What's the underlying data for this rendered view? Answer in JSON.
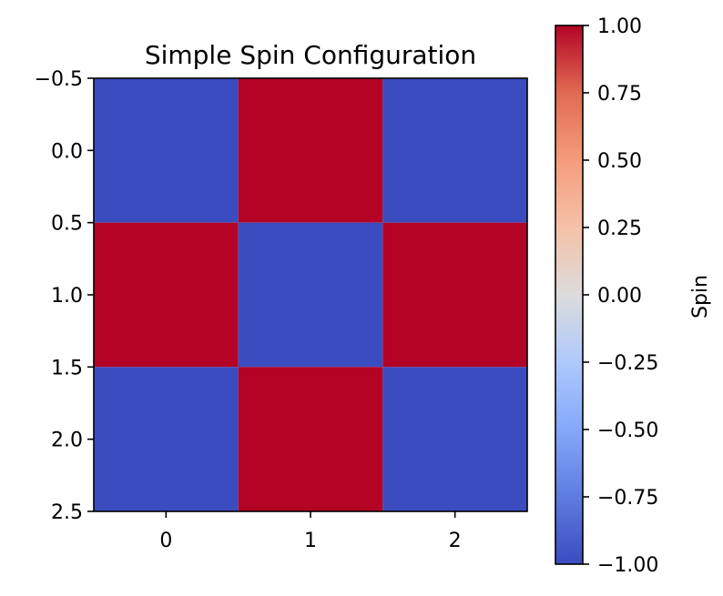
{
  "chart_data": {
    "type": "heatmap",
    "title": "Simple Spin Configuration",
    "xlabel": "",
    "ylabel": "",
    "x": [
      0,
      1,
      2
    ],
    "y": [
      0,
      1,
      2
    ],
    "values": [
      [
        -1,
        1,
        -1
      ],
      [
        1,
        -1,
        1
      ],
      [
        -1,
        1,
        -1
      ]
    ],
    "xlim": [
      -0.5,
      2.5
    ],
    "ylim": [
      2.5,
      -0.5
    ],
    "x_ticks": [
      "0",
      "1",
      "2"
    ],
    "y_ticks": [
      "−0.5",
      "0.0",
      "0.5",
      "1.0",
      "1.5",
      "2.0",
      "2.5"
    ],
    "colormap": "coolwarm",
    "color_min": "#3b4cc0",
    "color_max": "#b40426",
    "colorbar": {
      "label": "Spin",
      "range": [
        -1,
        1
      ],
      "ticks": [
        "1.00",
        "0.75",
        "0.50",
        "0.25",
        "0.00",
        "−0.25",
        "−0.50",
        "−0.75",
        "−1.00"
      ]
    },
    "grid": false
  }
}
